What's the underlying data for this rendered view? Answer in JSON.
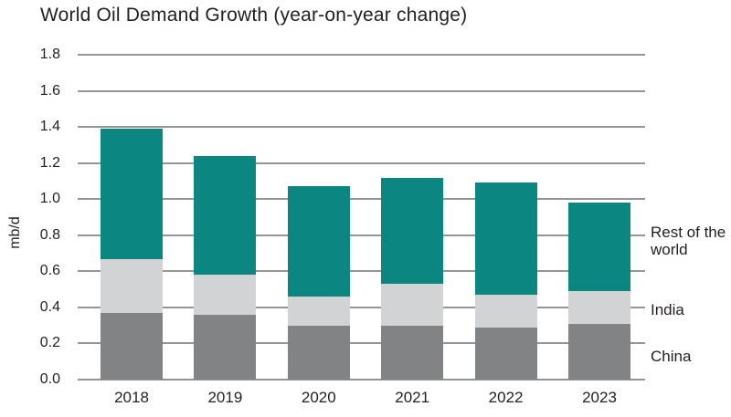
{
  "chart_data": {
    "type": "bar",
    "stacked": true,
    "title": "World Oil Demand Growth (year-on-year change)",
    "ylabel": "mb/d",
    "xlabel": "",
    "categories": [
      "2018",
      "2019",
      "2020",
      "2021",
      "2022",
      "2023"
    ],
    "series": [
      {
        "name": "China",
        "color": "#818385",
        "values": [
          0.37,
          0.36,
          0.3,
          0.3,
          0.29,
          0.31
        ]
      },
      {
        "name": "India",
        "color": "#d1d3d4",
        "values": [
          0.3,
          0.22,
          0.16,
          0.23,
          0.18,
          0.18
        ]
      },
      {
        "name": "Rest of the world",
        "color": "#0b8680",
        "values": [
          0.72,
          0.66,
          0.61,
          0.59,
          0.62,
          0.49
        ]
      }
    ],
    "totals": [
      1.39,
      1.24,
      1.07,
      1.12,
      1.09,
      0.98
    ],
    "unit": "mb/d",
    "ylim": [
      0,
      1.8
    ],
    "yticks": [
      "0.0",
      "0.2",
      "0.4",
      "0.6",
      "0.8",
      "1.0",
      "1.2",
      "1.4",
      "1.6",
      "1.8"
    ],
    "grid": "horizontal-behind-bars",
    "legend_position": "right-inline-labels",
    "colors": {
      "grid": "#939598",
      "text": "#231f20",
      "background": "#ffffff"
    }
  }
}
